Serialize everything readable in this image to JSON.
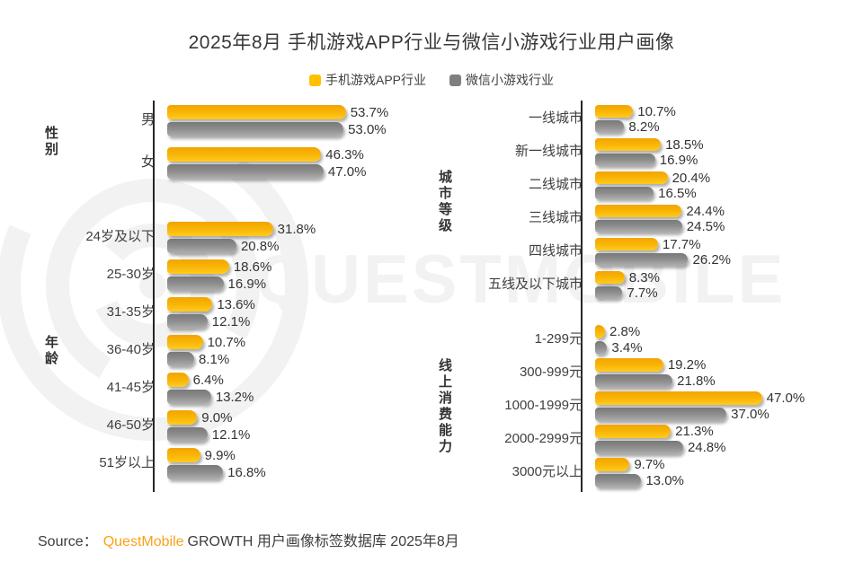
{
  "title": "2025年8月 手机游戏APP行业与微信小游戏行业用户画像",
  "legend": [
    {
      "label": "手机游戏APP行业",
      "color": "#FFC000"
    },
    {
      "label": "微信小游戏行业",
      "color": "#7F7F7F"
    }
  ],
  "watermark": {
    "text": "QUESTMOBILE",
    "color": "#F2F2F2"
  },
  "source": {
    "prefix": "Source：",
    "brand": "QuestMobile",
    "rest": "GROWTH 用户画像标签数据库 2025年8月"
  },
  "chart_data": [
    {
      "id": "gender",
      "type": "bar",
      "orientation": "horizontal",
      "title": "性别",
      "unit": "%",
      "categories": [
        "男",
        "女"
      ],
      "series": [
        {
          "name": "手机游戏APP行业",
          "color": "#FFC000",
          "values": [
            53.7,
            46.3
          ]
        },
        {
          "name": "微信小游戏行业",
          "color": "#7F7F7F",
          "values": [
            53.0,
            47.0
          ]
        }
      ]
    },
    {
      "id": "age",
      "type": "bar",
      "orientation": "horizontal",
      "title": "年龄",
      "unit": "%",
      "categories": [
        "24岁及以下",
        "25-30岁",
        "31-35岁",
        "36-40岁",
        "41-45岁",
        "46-50岁",
        "51岁以上"
      ],
      "series": [
        {
          "name": "手机游戏APP行业",
          "color": "#FFC000",
          "values": [
            31.8,
            18.6,
            13.6,
            10.7,
            6.4,
            9.0,
            9.9
          ]
        },
        {
          "name": "微信小游戏行业",
          "color": "#7F7F7F",
          "values": [
            20.8,
            16.9,
            12.1,
            8.1,
            13.2,
            12.1,
            16.8
          ]
        }
      ]
    },
    {
      "id": "city-tier",
      "type": "bar",
      "orientation": "horizontal",
      "title": "城市等级",
      "unit": "%",
      "categories": [
        "一线城市",
        "新一线城市",
        "二线城市",
        "三线城市",
        "四线城市",
        "五线及以下城市"
      ],
      "series": [
        {
          "name": "手机游戏APP行业",
          "color": "#FFC000",
          "values": [
            10.7,
            18.5,
            20.4,
            24.4,
            17.7,
            8.3
          ]
        },
        {
          "name": "微信小游戏行业",
          "color": "#7F7F7F",
          "values": [
            8.2,
            16.9,
            16.5,
            24.5,
            26.2,
            7.7
          ]
        }
      ]
    },
    {
      "id": "online-spending",
      "type": "bar",
      "orientation": "horizontal",
      "title": "线上消费能力",
      "unit": "%",
      "categories": [
        "1-299元",
        "300-999元",
        "1000-1999元",
        "2000-2999元",
        "3000元以上"
      ],
      "series": [
        {
          "name": "手机游戏APP行业",
          "color": "#FFC000",
          "values": [
            2.8,
            19.2,
            47.0,
            21.3,
            9.7
          ]
        },
        {
          "name": "微信小游戏行业",
          "color": "#7F7F7F",
          "values": [
            3.4,
            21.8,
            37.0,
            24.8,
            13.0
          ]
        }
      ]
    }
  ]
}
